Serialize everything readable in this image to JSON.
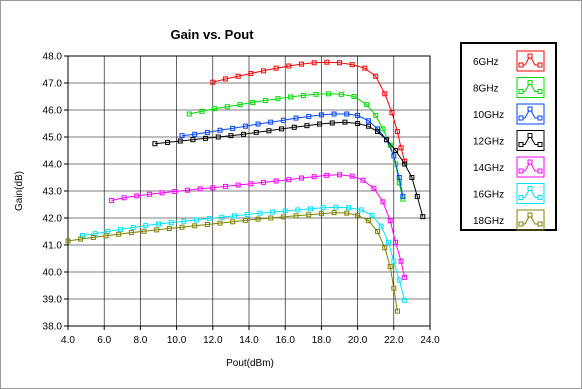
{
  "chart_data": {
    "type": "line",
    "title": "Gain vs. Pout",
    "xlabel": "Pout(dBm)",
    "ylabel": "Gain(dB)",
    "xlim": [
      4.0,
      24.0
    ],
    "ylim": [
      38.0,
      48.0
    ],
    "x_ticks": [
      "4.0",
      "6.0",
      "8.0",
      "10.0",
      "12.0",
      "14.0",
      "16.0",
      "18.0",
      "20.0",
      "22.0",
      "24.0"
    ],
    "y_ticks": [
      "38.0",
      "39.0",
      "40.0",
      "41.0",
      "42.0",
      "43.0",
      "44.0",
      "45.0",
      "46.0",
      "47.0",
      "48.0"
    ],
    "grid": true,
    "legend_position": "right",
    "series": [
      {
        "name": "6GHz",
        "color": "#ff0000",
        "points": [
          [
            12.0,
            47.03
          ],
          [
            12.7,
            47.15
          ],
          [
            13.4,
            47.25
          ],
          [
            14.1,
            47.35
          ],
          [
            14.8,
            47.45
          ],
          [
            15.5,
            47.55
          ],
          [
            16.2,
            47.63
          ],
          [
            16.9,
            47.7
          ],
          [
            17.6,
            47.75
          ],
          [
            18.3,
            47.77
          ],
          [
            19.0,
            47.75
          ],
          [
            19.7,
            47.68
          ],
          [
            20.4,
            47.55
          ],
          [
            21.0,
            47.25
          ],
          [
            21.5,
            46.6
          ],
          [
            21.9,
            45.9
          ],
          [
            22.2,
            45.2
          ],
          [
            22.4,
            44.6
          ],
          [
            22.6,
            44.1
          ]
        ]
      },
      {
        "name": "8GHz",
        "color": "#00dd00",
        "points": [
          [
            10.7,
            45.85
          ],
          [
            11.4,
            45.95
          ],
          [
            12.1,
            46.05
          ],
          [
            12.8,
            46.12
          ],
          [
            13.5,
            46.2
          ],
          [
            14.2,
            46.28
          ],
          [
            14.9,
            46.35
          ],
          [
            15.6,
            46.42
          ],
          [
            16.3,
            46.48
          ],
          [
            17.0,
            46.54
          ],
          [
            17.7,
            46.58
          ],
          [
            18.4,
            46.6
          ],
          [
            19.1,
            46.58
          ],
          [
            19.8,
            46.5
          ],
          [
            20.5,
            46.2
          ],
          [
            21.0,
            45.8
          ],
          [
            21.4,
            45.3
          ],
          [
            21.8,
            44.7
          ],
          [
            22.1,
            44.0
          ],
          [
            22.3,
            43.3
          ],
          [
            22.5,
            42.7
          ]
        ]
      },
      {
        "name": "10GHz",
        "color": "#0044ff",
        "points": [
          [
            10.3,
            45.05
          ],
          [
            11.0,
            45.1
          ],
          [
            11.7,
            45.17
          ],
          [
            12.4,
            45.25
          ],
          [
            13.1,
            45.32
          ],
          [
            13.8,
            45.4
          ],
          [
            14.5,
            45.48
          ],
          [
            15.2,
            45.55
          ],
          [
            15.9,
            45.62
          ],
          [
            16.6,
            45.7
          ],
          [
            17.3,
            45.76
          ],
          [
            18.0,
            45.82
          ],
          [
            18.7,
            45.85
          ],
          [
            19.4,
            45.85
          ],
          [
            20.0,
            45.8
          ],
          [
            20.6,
            45.6
          ],
          [
            21.1,
            45.3
          ],
          [
            21.6,
            44.9
          ],
          [
            22.0,
            44.3
          ],
          [
            22.3,
            43.5
          ],
          [
            22.5,
            42.8
          ]
        ]
      },
      {
        "name": "12GHz",
        "color": "#000000",
        "points": [
          [
            8.8,
            44.75
          ],
          [
            9.5,
            44.8
          ],
          [
            10.2,
            44.85
          ],
          [
            10.9,
            44.9
          ],
          [
            11.6,
            44.95
          ],
          [
            12.3,
            45.0
          ],
          [
            13.0,
            45.05
          ],
          [
            13.7,
            45.1
          ],
          [
            14.4,
            45.17
          ],
          [
            15.1,
            45.23
          ],
          [
            15.8,
            45.3
          ],
          [
            16.5,
            45.36
          ],
          [
            17.2,
            45.42
          ],
          [
            17.9,
            45.48
          ],
          [
            18.6,
            45.52
          ],
          [
            19.3,
            45.55
          ],
          [
            20.0,
            45.5
          ],
          [
            20.6,
            45.4
          ],
          [
            21.1,
            45.2
          ],
          [
            21.6,
            44.9
          ],
          [
            22.1,
            44.5
          ],
          [
            22.6,
            44.0
          ],
          [
            23.0,
            43.5
          ],
          [
            23.3,
            42.8
          ],
          [
            23.6,
            42.05
          ]
        ]
      },
      {
        "name": "14GHz",
        "color": "#ff00ff",
        "points": [
          [
            6.4,
            42.65
          ],
          [
            7.1,
            42.75
          ],
          [
            7.8,
            42.82
          ],
          [
            8.5,
            42.88
          ],
          [
            9.2,
            42.93
          ],
          [
            9.9,
            42.98
          ],
          [
            10.6,
            43.03
          ],
          [
            11.3,
            43.08
          ],
          [
            12.0,
            43.12
          ],
          [
            12.7,
            43.17
          ],
          [
            13.4,
            43.22
          ],
          [
            14.1,
            43.27
          ],
          [
            14.8,
            43.32
          ],
          [
            15.5,
            43.37
          ],
          [
            16.2,
            43.42
          ],
          [
            16.9,
            43.48
          ],
          [
            17.6,
            43.53
          ],
          [
            18.3,
            43.58
          ],
          [
            19.0,
            43.6
          ],
          [
            19.7,
            43.55
          ],
          [
            20.3,
            43.4
          ],
          [
            20.9,
            43.1
          ],
          [
            21.4,
            42.6
          ],
          [
            21.8,
            41.9
          ],
          [
            22.1,
            41.1
          ],
          [
            22.4,
            40.4
          ],
          [
            22.6,
            39.8
          ]
        ]
      },
      {
        "name": "16GHz",
        "color": "#00e5ff",
        "points": [
          [
            4.8,
            41.35
          ],
          [
            5.5,
            41.42
          ],
          [
            6.2,
            41.5
          ],
          [
            6.9,
            41.58
          ],
          [
            7.6,
            41.65
          ],
          [
            8.3,
            41.72
          ],
          [
            9.0,
            41.78
          ],
          [
            9.7,
            41.83
          ],
          [
            10.4,
            41.88
          ],
          [
            11.1,
            41.93
          ],
          [
            11.8,
            41.98
          ],
          [
            12.5,
            42.03
          ],
          [
            13.2,
            42.08
          ],
          [
            13.9,
            42.13
          ],
          [
            14.6,
            42.18
          ],
          [
            15.3,
            42.22
          ],
          [
            16.0,
            42.26
          ],
          [
            16.7,
            42.3
          ],
          [
            17.4,
            42.34
          ],
          [
            18.1,
            42.38
          ],
          [
            18.8,
            42.4
          ],
          [
            19.5,
            42.38
          ],
          [
            20.2,
            42.3
          ],
          [
            20.8,
            42.1
          ],
          [
            21.3,
            41.7
          ],
          [
            21.7,
            41.1
          ],
          [
            22.0,
            40.4
          ],
          [
            22.3,
            39.7
          ],
          [
            22.6,
            38.95
          ]
        ]
      },
      {
        "name": "18GHz",
        "color": "#808000",
        "points": [
          [
            4.0,
            41.15
          ],
          [
            4.7,
            41.22
          ],
          [
            5.4,
            41.28
          ],
          [
            6.1,
            41.34
          ],
          [
            6.8,
            41.4
          ],
          [
            7.5,
            41.46
          ],
          [
            8.2,
            41.51
          ],
          [
            8.9,
            41.56
          ],
          [
            9.6,
            41.61
          ],
          [
            10.3,
            41.66
          ],
          [
            11.0,
            41.71
          ],
          [
            11.7,
            41.76
          ],
          [
            12.4,
            41.81
          ],
          [
            13.1,
            41.86
          ],
          [
            13.8,
            41.91
          ],
          [
            14.5,
            41.96
          ],
          [
            15.2,
            42.0
          ],
          [
            15.9,
            42.04
          ],
          [
            16.6,
            42.08
          ],
          [
            17.3,
            42.12
          ],
          [
            18.0,
            42.16
          ],
          [
            18.7,
            42.2
          ],
          [
            19.4,
            42.18
          ],
          [
            20.0,
            42.1
          ],
          [
            20.6,
            41.9
          ],
          [
            21.1,
            41.5
          ],
          [
            21.5,
            40.9
          ],
          [
            21.8,
            40.2
          ],
          [
            22.0,
            39.4
          ],
          [
            22.2,
            38.55
          ]
        ]
      }
    ]
  }
}
